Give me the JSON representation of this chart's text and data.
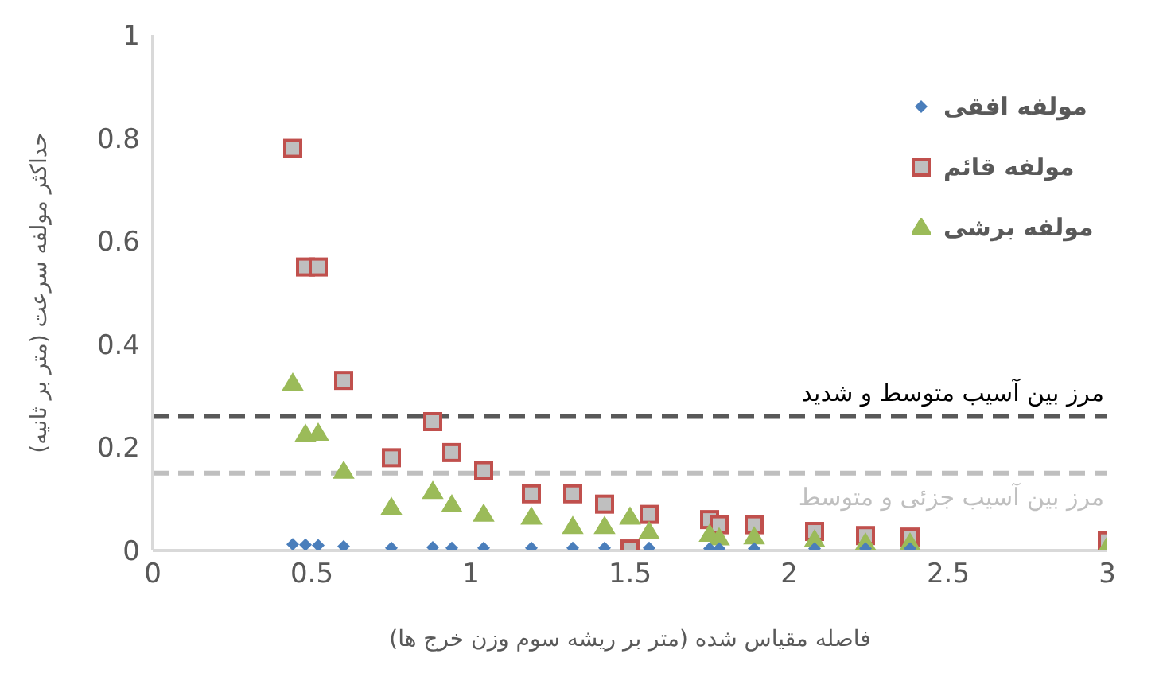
{
  "chart_data": {
    "type": "scatter",
    "xlabel": "فاصله مقیاس شده (متر بر ریشه سوم وزن خرج ها)",
    "ylabel": "حداکثر مولفه سرعت (متر بر ثانیه)",
    "xlim": [
      0,
      3
    ],
    "xticks": [
      0,
      0.5,
      1,
      1.5,
      2,
      2.5,
      3
    ],
    "ylim": [
      0,
      1
    ],
    "yticks": [
      0,
      0.2,
      0.4,
      0.6,
      0.8,
      1
    ],
    "grid": false,
    "legend": "top right",
    "series": [
      {
        "name": "مولفه افقی",
        "color": "#4a7ebb",
        "marker": "diamond",
        "x": [
          0.44,
          0.48,
          0.52,
          0.6,
          0.75,
          0.88,
          0.94,
          1.04,
          1.19,
          1.32,
          1.42,
          1.56,
          1.75,
          1.78,
          1.89,
          2.08,
          2.24,
          2.38
        ],
        "values": [
          0.012,
          0.011,
          0.01,
          0.008,
          0.005,
          0.006,
          0.005,
          0.005,
          0.005,
          0.005,
          0.005,
          0.005,
          0.004,
          0.004,
          0.004,
          0.004,
          0.004,
          0.004
        ]
      },
      {
        "name": "مولفه قائم",
        "color": "#c0504d",
        "marker": "square",
        "x": [
          0.44,
          0.48,
          0.52,
          0.6,
          0.75,
          0.88,
          0.94,
          1.04,
          1.19,
          1.32,
          1.42,
          1.5,
          1.56,
          1.75,
          1.78,
          1.89,
          2.08,
          2.24,
          2.38,
          3.0
        ],
        "values": [
          0.78,
          0.55,
          0.55,
          0.33,
          0.18,
          0.25,
          0.19,
          0.155,
          0.11,
          0.11,
          0.09,
          0.003,
          0.07,
          0.06,
          0.05,
          0.05,
          0.037,
          0.029,
          0.026,
          0.019
        ]
      },
      {
        "name": "مولفه برشی",
        "color": "#9bbb59",
        "marker": "triangle",
        "x": [
          0.44,
          0.48,
          0.52,
          0.6,
          0.75,
          0.88,
          0.94,
          1.04,
          1.19,
          1.32,
          1.42,
          1.5,
          1.56,
          1.75,
          1.78,
          1.89,
          2.08,
          2.24,
          2.38,
          3.0
        ],
        "values": [
          0.324,
          0.225,
          0.227,
          0.153,
          0.083,
          0.114,
          0.088,
          0.07,
          0.064,
          0.046,
          0.046,
          0.064,
          0.036,
          0.031,
          0.024,
          0.026,
          0.02,
          0.014,
          0.014,
          0.007
        ]
      }
    ],
    "ref_lines": [
      {
        "axis": "y",
        "value": 0.26,
        "label": "مرز بین آسیب متوسط و شدید",
        "color": "#595959",
        "line_style": "dashed"
      },
      {
        "axis": "y",
        "value": 0.15,
        "label": "مرز بین آسیب جزئی و متوسط",
        "color": "#bfbfbf",
        "line_style": "dashed"
      }
    ]
  }
}
